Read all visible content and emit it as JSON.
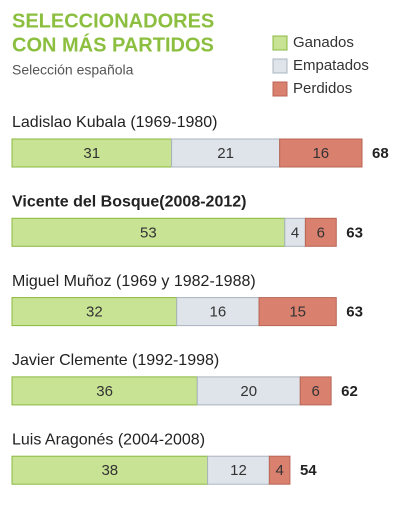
{
  "chart_data": {
    "type": "bar",
    "orientation": "horizontal",
    "stacked": true,
    "title": [
      "SELECCIONADORES",
      "CON MÁS PARTIDOS"
    ],
    "subtitle": "Selección española",
    "categories": [
      "Ladislao Kubala (1969-1980)",
      "Vicente del Bosque(2008-2012)",
      "Miguel Muñoz (1969 y 1982-1988)",
      "Javier Clemente (1992-1998)",
      "Luis Aragonés (2004-2008)"
    ],
    "highlight": [
      false,
      true,
      false,
      false,
      false
    ],
    "series": [
      {
        "name": "Ganados",
        "color": "#c9e394",
        "border": "#8ab840",
        "values": [
          31,
          53,
          32,
          36,
          38
        ]
      },
      {
        "name": "Empatados",
        "color": "#dfe4ea",
        "border": "#a9b4c0",
        "values": [
          21,
          4,
          16,
          20,
          12
        ]
      },
      {
        "name": "Perdidos",
        "color": "#d9806f",
        "border": "#b86656",
        "values": [
          16,
          6,
          15,
          6,
          4
        ]
      }
    ],
    "totals": [
      68,
      63,
      63,
      62,
      54
    ]
  }
}
